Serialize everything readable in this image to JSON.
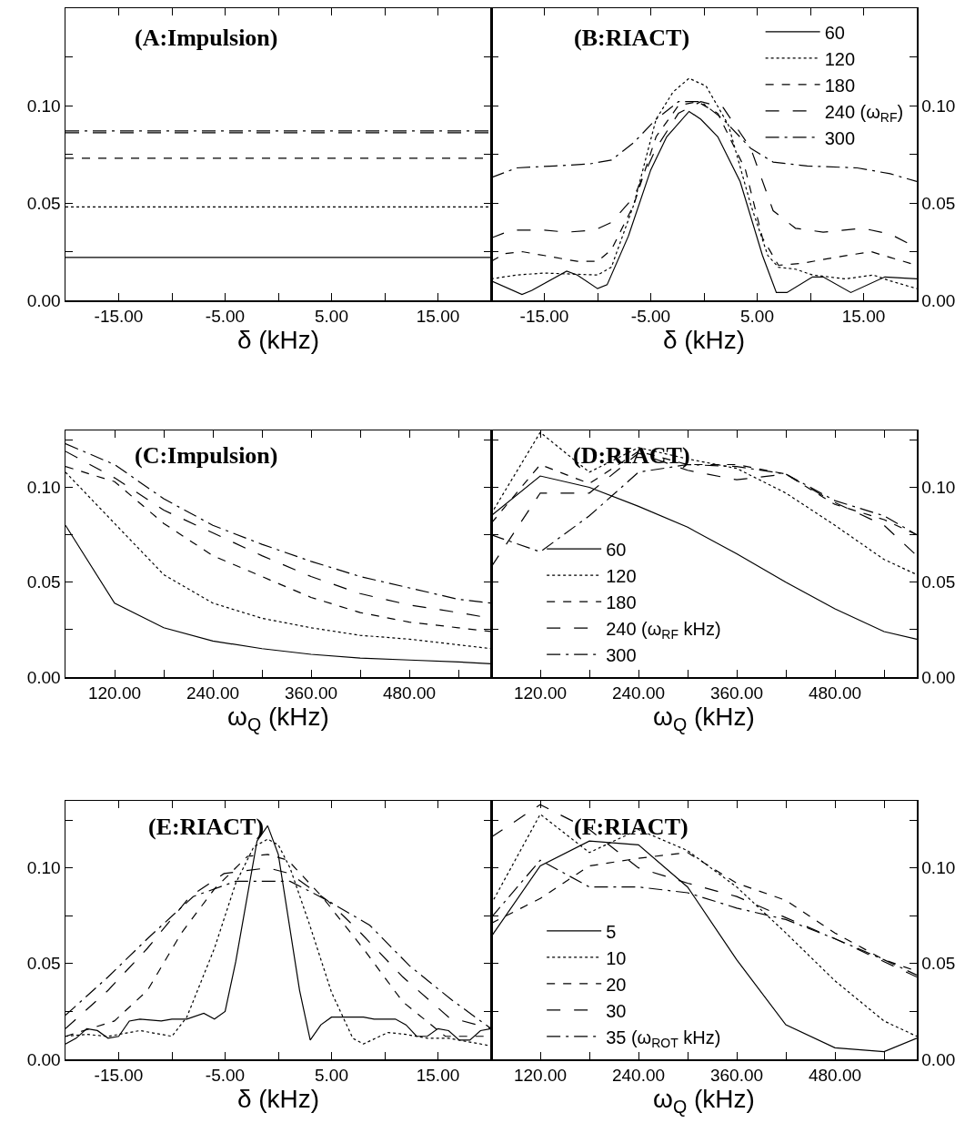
{
  "chart_data": [
    {
      "type": "line",
      "title": "(A:Impulsion)",
      "xlabel": "δ (kHz)",
      "x": [
        -20,
        20
      ],
      "xlim": [
        -20,
        20
      ],
      "ylim": [
        0,
        0.15
      ],
      "grid": false,
      "legend": false,
      "marker": "none",
      "xticks": [
        {
          "value": -15,
          "label": "-15.00"
        },
        {
          "value": -10,
          "label": null
        },
        {
          "value": -5,
          "label": "-5.00"
        },
        {
          "value": 0,
          "label": null
        },
        {
          "value": 5,
          "label": "5.00"
        },
        {
          "value": 10,
          "label": null
        },
        {
          "value": 15,
          "label": "15.00"
        }
      ],
      "yticks": [
        {
          "value": 0,
          "label": "0.00"
        },
        {
          "value": 0.025,
          "label": null
        },
        {
          "value": 0.05,
          "label": "0.05"
        },
        {
          "value": 0.075,
          "label": null
        },
        {
          "value": 0.1,
          "label": "0.10"
        },
        {
          "value": 0.125,
          "label": null
        }
      ],
      "series": [
        {
          "color": "#000000",
          "line_style": "solid",
          "values": [
            0.022,
            0.022
          ]
        },
        {
          "color": "#000000",
          "line_style": "dotted",
          "values": [
            0.048,
            0.048
          ]
        },
        {
          "color": "#000000",
          "line_style": "dashed",
          "values": [
            0.073,
            0.073
          ]
        },
        {
          "color": "#000000",
          "line_style": "longdash",
          "values": [
            0.086,
            0.086
          ]
        },
        {
          "color": "#000000",
          "line_style": "dashdot",
          "values": [
            0.087,
            0.087
          ]
        }
      ]
    },
    {
      "type": "line",
      "title": "(B:RIACT)",
      "xlabel": "δ (kHz)",
      "xlim": [
        -20,
        20
      ],
      "ylim": [
        0,
        0.15
      ],
      "grid": false,
      "legend": "top right",
      "marker": "none",
      "xticks": [
        {
          "value": -15,
          "label": "-15.00"
        },
        {
          "value": -10,
          "label": null
        },
        {
          "value": -5,
          "label": "-5.00"
        },
        {
          "value": 0,
          "label": null
        },
        {
          "value": 5,
          "label": "5.00"
        },
        {
          "value": 10,
          "label": null
        },
        {
          "value": 15,
          "label": "15.00"
        }
      ],
      "yticks": [
        {
          "value": 0,
          "label": "0.00"
        },
        {
          "value": 0.025,
          "label": null
        },
        {
          "value": 0.05,
          "label": "0.05"
        },
        {
          "value": 0.075,
          "label": null
        },
        {
          "value": 0.1,
          "label": "0.10"
        },
        {
          "value": 0.125,
          "label": null
        }
      ],
      "series": [
        {
          "name": "60",
          "color": "#000000",
          "line_style": "solid",
          "x": [
            -20,
            -17.1,
            -16.2,
            -12.9,
            -11.9,
            -10,
            -9.1,
            -7.1,
            -5,
            -3.5,
            -1.4,
            -0.3,
            1.3,
            3.4,
            5.5,
            6.8,
            7.8,
            10.2,
            11.2,
            13.8,
            17,
            20
          ],
          "values": [
            0.01,
            0.003,
            0.005,
            0.015,
            0.013,
            0.006,
            0.008,
            0.033,
            0.067,
            0.084,
            0.097,
            0.093,
            0.084,
            0.061,
            0.023,
            0.004,
            0.004,
            0.012,
            0.012,
            0.004,
            0.012,
            0.011
          ]
        },
        {
          "name": "120",
          "color": "#000000",
          "line_style": "dotted",
          "x": [
            -20,
            -17.6,
            -15,
            -10,
            -8.7,
            -6.6,
            -4.5,
            -2.9,
            -1.4,
            0.2,
            2.3,
            4.4,
            6,
            7,
            8.6,
            10.2,
            13.3,
            15.9,
            17.5,
            20
          ],
          "values": [
            0.011,
            0.013,
            0.014,
            0.013,
            0.017,
            0.049,
            0.093,
            0.107,
            0.114,
            0.11,
            0.09,
            0.049,
            0.023,
            0.017,
            0.016,
            0.013,
            0.011,
            0.013,
            0.01,
            0.006
          ]
        },
        {
          "name": "180",
          "color": "#000000",
          "line_style": "dashed",
          "x": [
            -20,
            -18.7,
            -17.1,
            -15,
            -11.9,
            -10,
            -8.7,
            -6.6,
            -4.5,
            -2.4,
            -0.6,
            1.3,
            3.9,
            5.5,
            7,
            9.2,
            12.3,
            15.7,
            17.5,
            20
          ],
          "values": [
            0.02,
            0.024,
            0.025,
            0.023,
            0.02,
            0.02,
            0.026,
            0.049,
            0.084,
            0.1,
            0.102,
            0.096,
            0.067,
            0.032,
            0.018,
            0.019,
            0.022,
            0.025,
            0.022,
            0.018
          ]
        },
        {
          "name": "240 (ω$_{RF}$)",
          "color": "#000000",
          "line_style": "longdash",
          "x": [
            -20,
            -18.1,
            -15,
            -12.9,
            -10.3,
            -8.7,
            -6.6,
            -4.5,
            -2.4,
            -0.3,
            1.8,
            4.4,
            6.5,
            8.6,
            11.2,
            14.9,
            17.5,
            20
          ],
          "values": [
            0.032,
            0.036,
            0.036,
            0.035,
            0.036,
            0.04,
            0.053,
            0.078,
            0.096,
            0.102,
            0.099,
            0.078,
            0.046,
            0.037,
            0.035,
            0.037,
            0.034,
            0.027
          ]
        },
        {
          "name": "300",
          "color": "#000000",
          "line_style": "dashdot",
          "x": [
            -20,
            -17.6,
            -14,
            -10.8,
            -8.7,
            -6.6,
            -4.5,
            -2.4,
            -0.3,
            1.8,
            4.4,
            6.5,
            9.7,
            14.4,
            17.5,
            20
          ],
          "values": [
            0.063,
            0.068,
            0.069,
            0.07,
            0.072,
            0.081,
            0.093,
            0.102,
            0.102,
            0.093,
            0.078,
            0.071,
            0.069,
            0.068,
            0.065,
            0.061
          ]
        }
      ]
    },
    {
      "type": "line",
      "title": "(C:Impulsion)",
      "xlabel": "ω$_{Q}$ (kHz)",
      "x": [
        60,
        120,
        180,
        240,
        300,
        360,
        420,
        480,
        540,
        580
      ],
      "xlim": [
        60,
        580
      ],
      "ylim": [
        0,
        0.13
      ],
      "grid": false,
      "legend": false,
      "marker": "none",
      "xticks": [
        {
          "value": 120,
          "label": "120.00"
        },
        {
          "value": 180,
          "label": null
        },
        {
          "value": 240,
          "label": "240.00"
        },
        {
          "value": 300,
          "label": null
        },
        {
          "value": 360,
          "label": "360.00"
        },
        {
          "value": 420,
          "label": null
        },
        {
          "value": 480,
          "label": "480.00"
        },
        {
          "value": 540,
          "label": null
        }
      ],
      "yticks": [
        {
          "value": 0,
          "label": "0.00"
        },
        {
          "value": 0.025,
          "label": null
        },
        {
          "value": 0.05,
          "label": "0.05"
        },
        {
          "value": 0.075,
          "label": null
        },
        {
          "value": 0.1,
          "label": "0.10"
        },
        {
          "value": 0.125,
          "label": null
        }
      ],
      "series": [
        {
          "color": "#000000",
          "line_style": "solid",
          "values": [
            0.08,
            0.039,
            0.026,
            0.019,
            0.015,
            0.012,
            0.01,
            0.009,
            0.008,
            0.007
          ]
        },
        {
          "color": "#000000",
          "line_style": "dotted",
          "values": [
            0.108,
            0.081,
            0.054,
            0.039,
            0.031,
            0.026,
            0.022,
            0.02,
            0.017,
            0.015
          ]
        },
        {
          "color": "#000000",
          "line_style": "dashed",
          "values": [
            0.111,
            0.103,
            0.081,
            0.064,
            0.053,
            0.042,
            0.034,
            0.029,
            0.026,
            0.024
          ]
        },
        {
          "color": "#000000",
          "line_style": "longdash",
          "values": [
            0.119,
            0.105,
            0.088,
            0.076,
            0.064,
            0.053,
            0.044,
            0.038,
            0.034,
            0.031
          ]
        },
        {
          "color": "#000000",
          "line_style": "dashdot",
          "values": [
            0.123,
            0.112,
            0.094,
            0.08,
            0.07,
            0.061,
            0.053,
            0.047,
            0.041,
            0.039
          ]
        }
      ]
    },
    {
      "type": "line",
      "title": "(D:RIACT)",
      "xlabel": "ω$_{Q}$ (kHz)",
      "x": [
        60,
        120,
        180,
        240,
        300,
        360,
        420,
        480,
        540,
        580
      ],
      "xlim": [
        60,
        580
      ],
      "ylim": [
        0,
        0.13
      ],
      "grid": false,
      "legend": "bottom left",
      "marker": "none",
      "xticks": [
        {
          "value": 120,
          "label": "120.00"
        },
        {
          "value": 180,
          "label": null
        },
        {
          "value": 240,
          "label": "240.00"
        },
        {
          "value": 300,
          "label": null
        },
        {
          "value": 360,
          "label": "360.00"
        },
        {
          "value": 420,
          "label": null
        },
        {
          "value": 480,
          "label": "480.00"
        },
        {
          "value": 540,
          "label": null
        }
      ],
      "yticks": [
        {
          "value": 0,
          "label": "0.00"
        },
        {
          "value": 0.025,
          "label": null
        },
        {
          "value": 0.05,
          "label": "0.05"
        },
        {
          "value": 0.075,
          "label": null
        },
        {
          "value": 0.1,
          "label": "0.10"
        },
        {
          "value": 0.125,
          "label": null
        }
      ],
      "series": [
        {
          "name": "60",
          "color": "#000000",
          "line_style": "solid",
          "values": [
            0.085,
            0.106,
            0.1,
            0.09,
            0.079,
            0.065,
            0.05,
            0.036,
            0.024,
            0.02
          ]
        },
        {
          "name": "120",
          "color": "#000000",
          "line_style": "dotted",
          "values": [
            0.086,
            0.129,
            0.108,
            0.121,
            0.115,
            0.11,
            0.097,
            0.08,
            0.062,
            0.054
          ]
        },
        {
          "name": "180",
          "color": "#000000",
          "line_style": "dashed",
          "values": [
            0.081,
            0.112,
            0.102,
            0.119,
            0.112,
            0.112,
            0.107,
            0.091,
            0.083,
            0.075
          ]
        },
        {
          "name": "240 (ω$_{RF}$ kHz)",
          "color": "#000000",
          "line_style": "longdash",
          "values": [
            0.058,
            0.097,
            0.097,
            0.118,
            0.109,
            0.104,
            0.107,
            0.092,
            0.08,
            0.064
          ]
        },
        {
          "name": "300",
          "color": "#000000",
          "line_style": "dashdot",
          "values": [
            0.075,
            0.066,
            0.085,
            0.108,
            0.112,
            0.111,
            0.107,
            0.093,
            0.085,
            0.075
          ]
        }
      ]
    },
    {
      "type": "line",
      "title": "(E:RIACT)",
      "xlabel": "δ (kHz)",
      "xlim": [
        -20,
        20
      ],
      "ylim": [
        0,
        0.135
      ],
      "grid": false,
      "legend": false,
      "marker": "none",
      "xticks": [
        {
          "value": -15,
          "label": "-15.00"
        },
        {
          "value": -10,
          "label": null
        },
        {
          "value": -5,
          "label": "-5.00"
        },
        {
          "value": 0,
          "label": null
        },
        {
          "value": 5,
          "label": "5.00"
        },
        {
          "value": 10,
          "label": null
        },
        {
          "value": 15,
          "label": "15.00"
        }
      ],
      "yticks": [
        {
          "value": 0,
          "label": "0.00"
        },
        {
          "value": 0.025,
          "label": null
        },
        {
          "value": 0.05,
          "label": "0.05"
        },
        {
          "value": 0.075,
          "label": null
        },
        {
          "value": 0.1,
          "label": "0.10"
        },
        {
          "value": 0.125,
          "label": null
        }
      ],
      "series": [
        {
          "color": "#000000",
          "line_style": "solid",
          "x": [
            -20,
            -19,
            -18,
            -17,
            -16,
            -15,
            -14,
            -13,
            -11,
            -10,
            -8.6,
            -7,
            -6,
            -5,
            -4,
            -2,
            -1,
            0,
            2,
            3,
            4,
            5,
            6,
            8,
            9,
            11,
            12,
            13,
            14,
            15,
            16,
            17,
            18,
            19,
            20
          ],
          "values": [
            0.008,
            0.011,
            0.016,
            0.015,
            0.011,
            0.012,
            0.02,
            0.021,
            0.02,
            0.021,
            0.021,
            0.024,
            0.021,
            0.025,
            0.051,
            0.114,
            0.122,
            0.107,
            0.036,
            0.01,
            0.018,
            0.022,
            0.022,
            0.022,
            0.021,
            0.021,
            0.018,
            0.012,
            0.012,
            0.016,
            0.015,
            0.01,
            0.01,
            0.015,
            0.016
          ]
        },
        {
          "color": "#000000",
          "line_style": "dotted",
          "x": [
            -20,
            -18,
            -16,
            -13,
            -10,
            -8.6,
            -6,
            -4,
            -2.3,
            -1,
            0,
            1.1,
            2.9,
            5,
            7,
            8,
            10.3,
            12,
            14,
            16,
            18,
            20
          ],
          "values": [
            0.012,
            0.013,
            0.012,
            0.015,
            0.012,
            0.022,
            0.058,
            0.092,
            0.111,
            0.115,
            0.112,
            0.1,
            0.071,
            0.035,
            0.011,
            0.008,
            0.014,
            0.013,
            0.011,
            0.011,
            0.009,
            0.007
          ]
        },
        {
          "color": "#000000",
          "line_style": "dashed",
          "x": [
            -20,
            -15.4,
            -12.3,
            -9.1,
            -6,
            -2.9,
            -1,
            0.9,
            4.1,
            8.1,
            11.7,
            15.7,
            20
          ],
          "values": [
            0.012,
            0.02,
            0.036,
            0.066,
            0.089,
            0.106,
            0.107,
            0.104,
            0.085,
            0.057,
            0.03,
            0.012,
            0.012
          ]
        },
        {
          "color": "#000000",
          "line_style": "longdash",
          "x": [
            -20,
            -16,
            -12.3,
            -8.3,
            -5.1,
            -1,
            1.1,
            4.6,
            7.4,
            11.7,
            16,
            20
          ],
          "values": [
            0.016,
            0.036,
            0.058,
            0.085,
            0.097,
            0.1,
            0.097,
            0.083,
            0.068,
            0.043,
            0.022,
            0.016
          ]
        },
        {
          "color": "#000000",
          "line_style": "dashdot",
          "x": [
            -20,
            -16,
            -12.3,
            -8,
            -4,
            -1,
            1.1,
            4.6,
            8.6,
            12.3,
            16.3,
            20
          ],
          "values": [
            0.023,
            0.043,
            0.063,
            0.085,
            0.093,
            0.093,
            0.093,
            0.083,
            0.07,
            0.049,
            0.031,
            0.016
          ]
        }
      ]
    },
    {
      "type": "line",
      "title": "(F:RIACT)",
      "xlabel": "ω$_{Q}$ (kHz)",
      "x": [
        60,
        120,
        180,
        240,
        300,
        360,
        420,
        480,
        540,
        580
      ],
      "xlim": [
        60,
        580
      ],
      "ylim": [
        0,
        0.135
      ],
      "grid": false,
      "legend": "bottom left",
      "marker": "none",
      "xticks": [
        {
          "value": 120,
          "label": "120.00"
        },
        {
          "value": 180,
          "label": null
        },
        {
          "value": 240,
          "label": "240.00"
        },
        {
          "value": 300,
          "label": null
        },
        {
          "value": 360,
          "label": "360.00"
        },
        {
          "value": 420,
          "label": null
        },
        {
          "value": 480,
          "label": "480.00"
        },
        {
          "value": 540,
          "label": null
        }
      ],
      "yticks": [
        {
          "value": 0,
          "label": "0.00"
        },
        {
          "value": 0.025,
          "label": null
        },
        {
          "value": 0.05,
          "label": "0.05"
        },
        {
          "value": 0.075,
          "label": null
        },
        {
          "value": 0.1,
          "label": "0.10"
        },
        {
          "value": 0.125,
          "label": null
        }
      ],
      "series": [
        {
          "name": "5",
          "color": "#000000",
          "line_style": "solid",
          "values": [
            0.064,
            0.101,
            0.114,
            0.112,
            0.09,
            0.052,
            0.018,
            0.006,
            0.004,
            0.011
          ]
        },
        {
          "name": "10",
          "color": "#000000",
          "line_style": "dotted",
          "values": [
            0.081,
            0.128,
            0.108,
            0.12,
            0.109,
            0.09,
            0.066,
            0.041,
            0.02,
            0.012
          ]
        },
        {
          "name": "20",
          "color": "#000000",
          "line_style": "dashed",
          "values": [
            0.071,
            0.084,
            0.101,
            0.105,
            0.108,
            0.092,
            0.083,
            0.066,
            0.052,
            0.046
          ]
        },
        {
          "name": "30",
          "color": "#000000",
          "line_style": "longdash",
          "values": [
            0.116,
            0.133,
            0.12,
            0.1,
            0.092,
            0.085,
            0.074,
            0.063,
            0.051,
            0.043
          ]
        },
        {
          "name": "35 (ω$_{ROT}$ kHz)",
          "color": "#000000",
          "line_style": "dashdot",
          "values": [
            0.074,
            0.104,
            0.09,
            0.09,
            0.087,
            0.079,
            0.073,
            0.063,
            0.052,
            0.044
          ]
        }
      ]
    }
  ]
}
